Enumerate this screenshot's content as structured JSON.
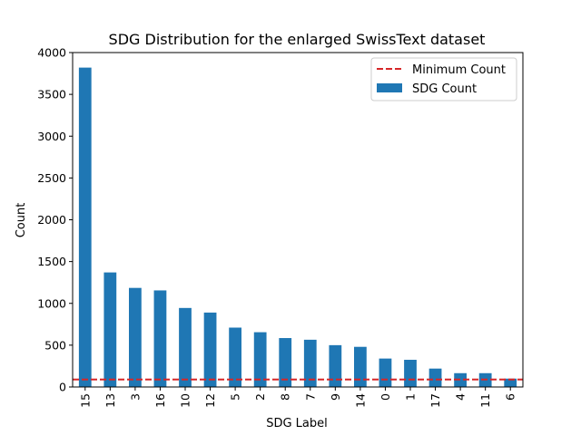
{
  "chart_data": {
    "type": "bar",
    "title": "SDG Distribution for the enlarged SwissText dataset",
    "xlabel": "SDG Label",
    "ylabel": "Count",
    "categories": [
      "15",
      "13",
      "3",
      "16",
      "10",
      "12",
      "5",
      "2",
      "8",
      "7",
      "9",
      "14",
      "0",
      "1",
      "17",
      "4",
      "11",
      "6"
    ],
    "series": [
      {
        "name": "SDG Count",
        "color": "#1f77b4",
        "values": [
          3820,
          1370,
          1185,
          1155,
          945,
          890,
          710,
          655,
          585,
          565,
          500,
          480,
          340,
          325,
          220,
          165,
          165,
          100
        ]
      }
    ],
    "reference_lines": [
      {
        "name": "Minimum Count",
        "value": 90,
        "color": "#d62728",
        "style": "dashed"
      }
    ],
    "ylim": [
      0,
      4000
    ],
    "yticks": [
      0,
      500,
      1000,
      1500,
      2000,
      2500,
      3000,
      3500,
      4000
    ],
    "grid": false,
    "legend_position": "top-right"
  }
}
